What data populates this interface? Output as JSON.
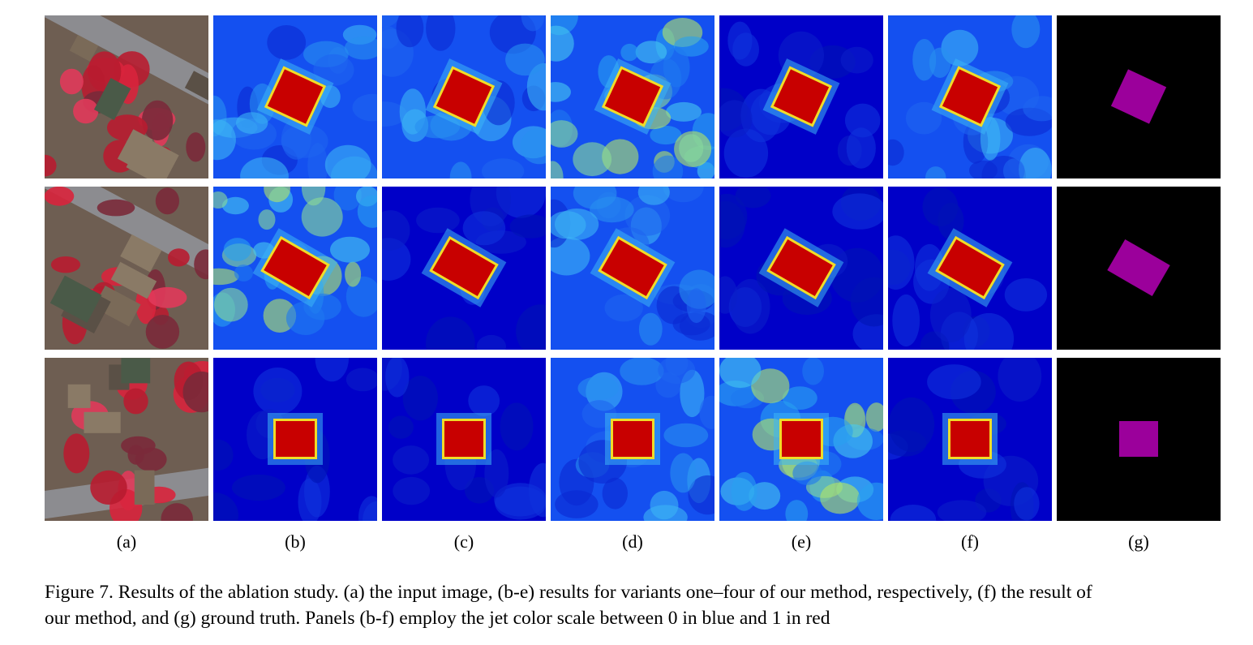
{
  "figure": {
    "panel_labels": [
      "(a)",
      "(b)",
      "(c)",
      "(d)",
      "(e)",
      "(f)",
      "(g)"
    ],
    "caption_line1": "Figure 7. Results of the ablation study. (a) the input image, (b-e) results for variants one–four of our method, respectively, (f) the result of",
    "caption_line2": "our method, and (g) ground truth. Panels (b-f) employ the jet color scale between 0 in blue and 1 in red"
  },
  "colors": {
    "jet_low": "#0000c8",
    "jet_mid_low": "#1450f0",
    "jet_mid": "#28a0f0",
    "jet_high": "#c80000",
    "ground_truth_mask": "#9b009b",
    "ground_truth_background": "#000000",
    "infrared_vegetation": "#d8243c",
    "roof": "#7a6a58",
    "road": "#8c8c90"
  }
}
